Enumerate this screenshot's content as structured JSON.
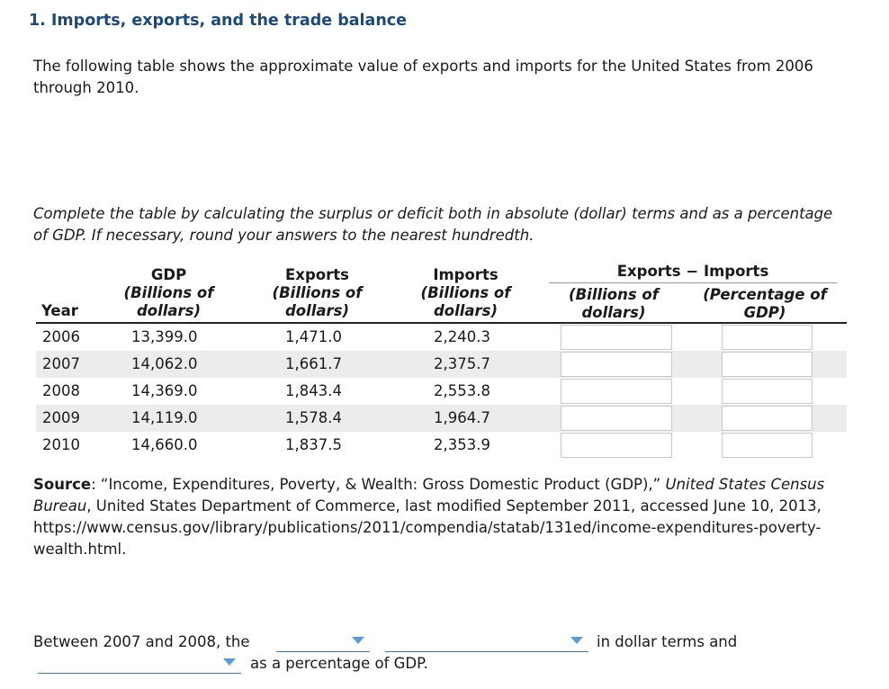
{
  "title": "1. Imports, exports, and the trade balance",
  "intro": "The following table shows the approximate value of exports and imports for the United States from 2006 through 2010.",
  "instructions": "Complete the table by calculating the surplus or deficit both in absolute (dollar) terms and as a percentage of GDP. If necessary, round your answers to the nearest hundredth.",
  "table": {
    "headers": {
      "year": "Year",
      "gdp": "GDP",
      "gdp_sub1": "(Billions of",
      "gdp_sub2": "dollars)",
      "exports": "Exports",
      "exports_sub1": "(Billions of",
      "exports_sub2": "dollars)",
      "imports": "Imports",
      "imports_sub1": "(Billions of",
      "imports_sub2": "dollars)",
      "group": "Exports − Imports",
      "diff_dollars_sub1": "(Billions of",
      "diff_dollars_sub2": "dollars)",
      "diff_pct_sub1": "(Percentage of",
      "diff_pct_sub2": "GDP)"
    },
    "rows": [
      {
        "year": "2006",
        "gdp": "13,399.0",
        "exports": "1,471.0",
        "imports": "2,240.3",
        "diff_dollars": "",
        "diff_pct": ""
      },
      {
        "year": "2007",
        "gdp": "14,062.0",
        "exports": "1,661.7",
        "imports": "2,375.7",
        "diff_dollars": "",
        "diff_pct": ""
      },
      {
        "year": "2008",
        "gdp": "14,369.0",
        "exports": "1,843.4",
        "imports": "2,553.8",
        "diff_dollars": "",
        "diff_pct": ""
      },
      {
        "year": "2009",
        "gdp": "14,119.0",
        "exports": "1,578.4",
        "imports": "1,964.7",
        "diff_dollars": "",
        "diff_pct": ""
      },
      {
        "year": "2010",
        "gdp": "14,660.0",
        "exports": "1,837.5",
        "imports": "2,353.9",
        "diff_dollars": "",
        "diff_pct": ""
      }
    ]
  },
  "source": {
    "label": "Source",
    "sep": ": ",
    "quote": "“Income, Expenditures, Poverty, & Wealth: Gross Domestic Product (GDP),” ",
    "publisher_italic": "United States Census Bureau",
    "rest": ", United States Department of Commerce, last modified September 2011, accessed June 10, 2013, https://www.census.gov/library/publications/2011/compendia/statab/131ed/income-expenditures-poverty-wealth.html."
  },
  "sentence": {
    "part1": "Between 2007 and 2008, the",
    "part2": "in dollar terms and",
    "part3": "as a percentage of GDP.",
    "dropdown1_value": "",
    "dropdown2_value": "",
    "dropdown3_value": ""
  },
  "colors": {
    "title": "#1c4b7a",
    "dropdown_accent": "#3b78b8",
    "row_shade": "#ececec"
  }
}
